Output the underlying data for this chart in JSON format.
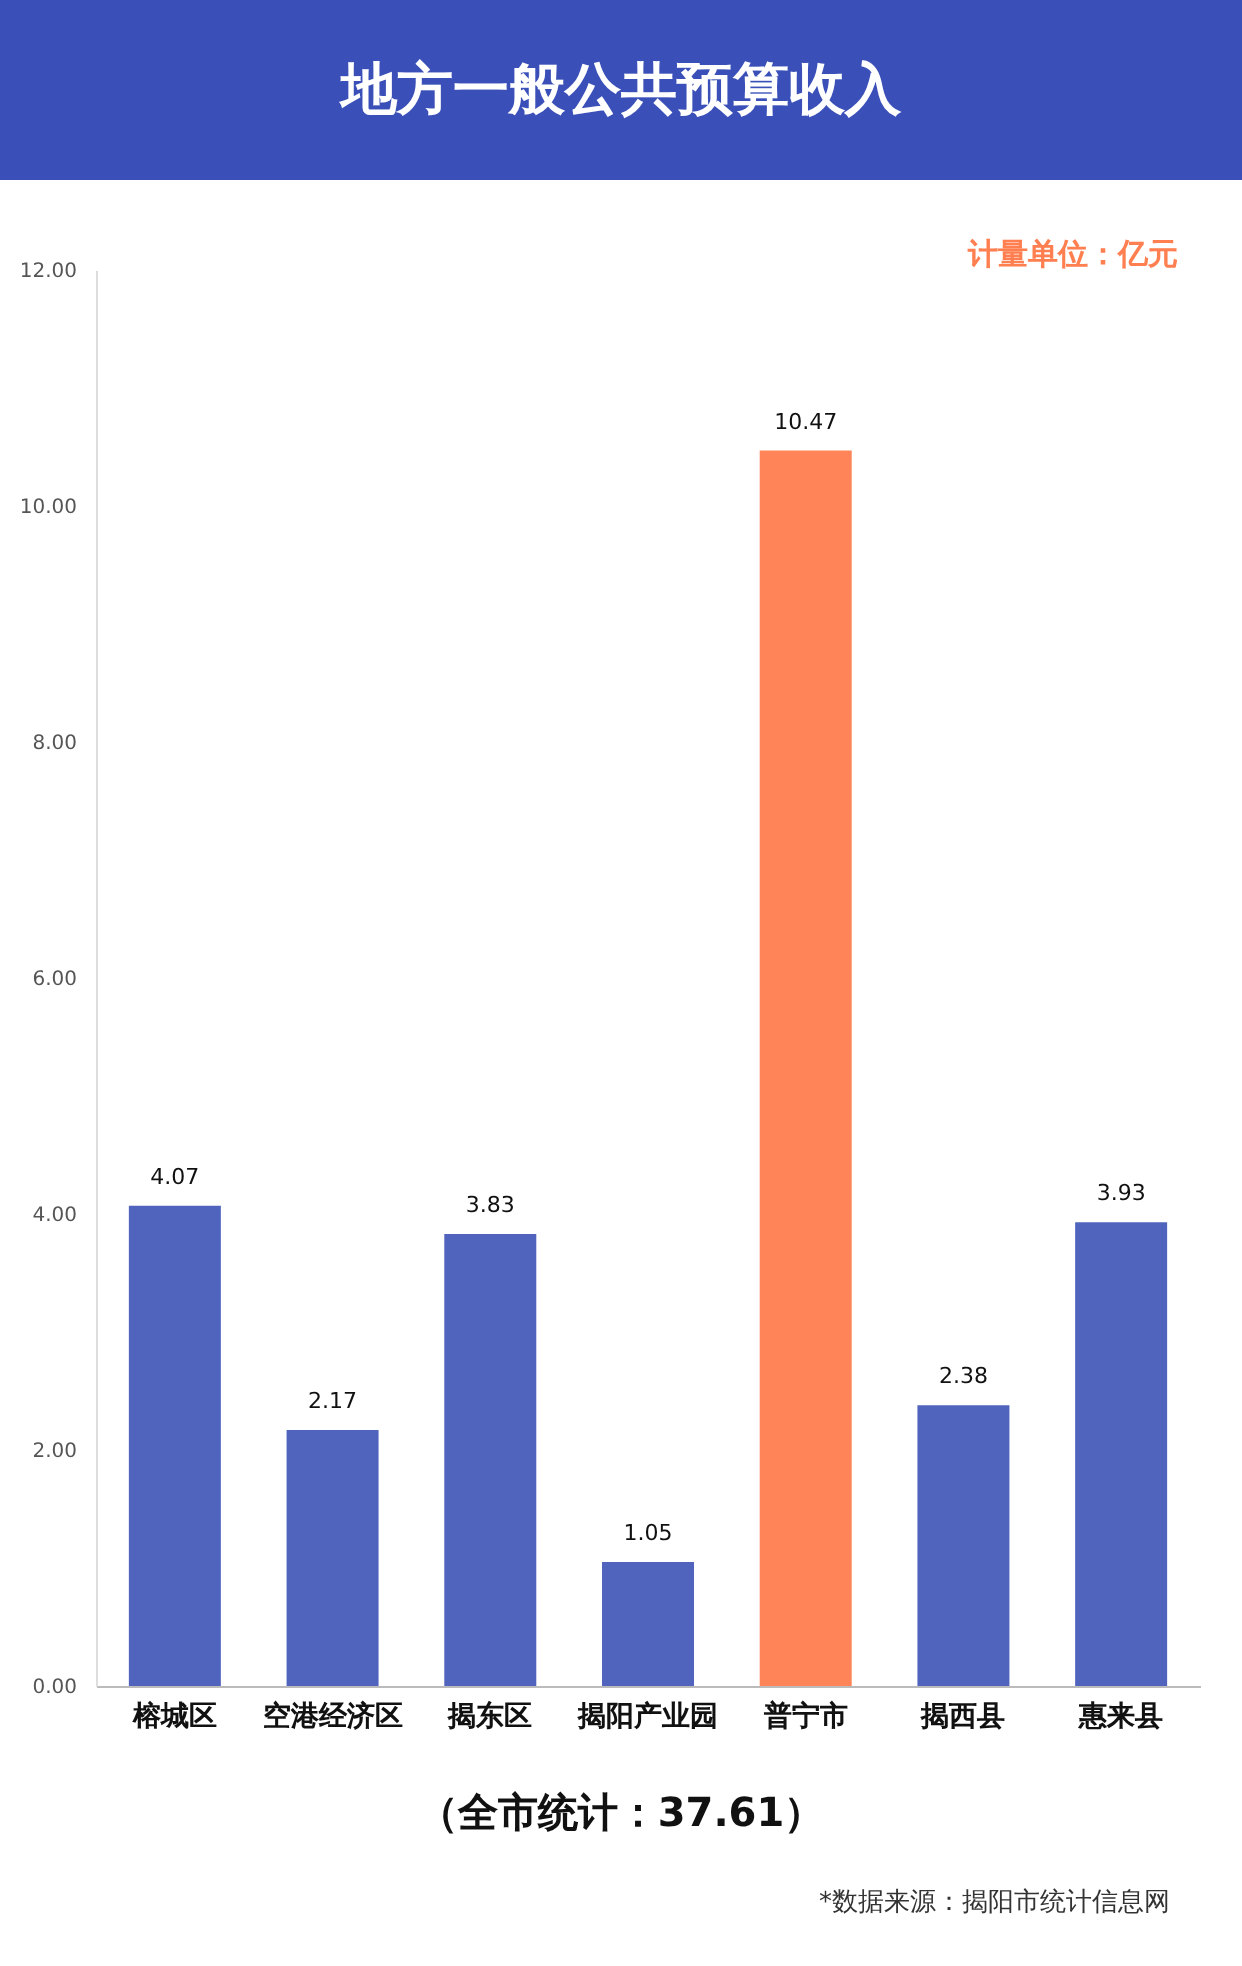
{
  "chart_data": {
    "type": "bar",
    "title": "地方一般公共预算收入",
    "categories": [
      "榕城区",
      "空港经济区",
      "揭东区",
      "揭阳产业园",
      "普宁市",
      "揭西县",
      "惠来县"
    ],
    "values": [
      4.07,
      2.17,
      3.83,
      1.05,
      10.47,
      2.38,
      3.93
    ],
    "colors": [
      "#5064be",
      "#5064be",
      "#5064be",
      "#5064be",
      "#ff8559",
      "#5064be",
      "#5064be"
    ],
    "ylim": [
      0,
      12
    ],
    "yticks": [
      {
        "value": 0,
        "label": "0.00"
      },
      {
        "value": 2,
        "label": "2.00"
      },
      {
        "value": 4,
        "label": "4.00"
      },
      {
        "value": 6,
        "label": "6.00"
      },
      {
        "value": 8,
        "label": "8.00"
      },
      {
        "value": 10,
        "label": "10.00"
      },
      {
        "value": 12,
        "label": "12.00"
      }
    ],
    "grid": false,
    "data_labels": true,
    "annotations": [
      "计量单位：亿元",
      "（全市统计：37.61）",
      "*数据来源：揭阳市统计信息网"
    ]
  }
}
